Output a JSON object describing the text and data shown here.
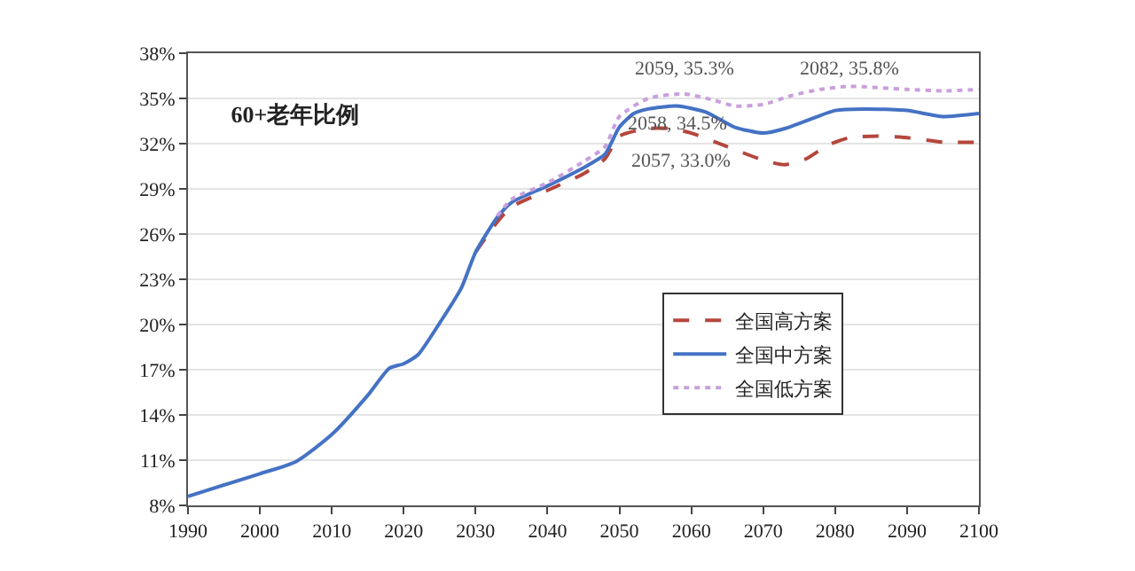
{
  "chart_data": {
    "type": "line",
    "title": "60+老年比例",
    "xlim": [
      1990,
      2100
    ],
    "xticks": [
      1990,
      2000,
      2010,
      2020,
      2030,
      2040,
      2050,
      2060,
      2070,
      2080,
      2090,
      2100
    ],
    "ylim": [
      8,
      38
    ],
    "yticks": [
      {
        "value": 8,
        "label": "8%"
      },
      {
        "value": 11,
        "label": "11%"
      },
      {
        "value": 14,
        "label": "14%"
      },
      {
        "value": 17,
        "label": "17%"
      },
      {
        "value": 20,
        "label": "20%"
      },
      {
        "value": 23,
        "label": "23%"
      },
      {
        "value": 26,
        "label": "26%"
      },
      {
        "value": 29,
        "label": "29%"
      },
      {
        "value": 32,
        "label": "32%"
      },
      {
        "value": 35,
        "label": "35%"
      },
      {
        "value": 38,
        "label": "38%"
      }
    ],
    "grid": "y",
    "legend": "right",
    "marker": "none",
    "series": [
      {
        "name": "全国高方案",
        "color": "#b5463c",
        "line_style": "dashed",
        "x": [
          2030,
          2033,
          2035,
          2040,
          2045,
          2048,
          2050,
          2054,
          2057,
          2060,
          2065,
          2070,
          2073,
          2076,
          2079,
          2082,
          2086,
          2090,
          2095,
          2100
        ],
        "values": [
          24.8,
          26.8,
          27.8,
          28.9,
          30.0,
          31.0,
          32.5,
          33.0,
          33.0,
          32.7,
          31.8,
          30.9,
          30.6,
          31.0,
          31.9,
          32.4,
          32.5,
          32.4,
          32.1,
          32.1
        ]
      },
      {
        "name": "全国中方案",
        "color": "#4472c4",
        "line_style": "solid",
        "x": [
          1990,
          2000,
          2005,
          2010,
          2015,
          2018,
          2020,
          2022,
          2025,
          2028,
          2030,
          2033,
          2035,
          2040,
          2045,
          2048,
          2050,
          2052,
          2054,
          2058,
          2062,
          2066,
          2070,
          2073,
          2077,
          2080,
          2084,
          2090,
          2095,
          2100
        ],
        "values": [
          8.6,
          10.1,
          10.9,
          12.7,
          15.3,
          17.1,
          17.4,
          18.0,
          20.1,
          22.4,
          24.8,
          27.1,
          28.1,
          29.2,
          30.4,
          31.3,
          33.1,
          34.0,
          34.3,
          34.5,
          34.1,
          33.1,
          32.7,
          33.0,
          33.7,
          34.2,
          34.3,
          34.2,
          33.8,
          34.0
        ]
      },
      {
        "name": "全国低方案",
        "color": "#c9a0dc",
        "line_style": "dotted",
        "x": [
          2033,
          2035,
          2040,
          2045,
          2048,
          2050,
          2054,
          2059,
          2063,
          2066,
          2070,
          2074,
          2078,
          2082,
          2090,
          2095,
          2100
        ],
        "values": [
          27.2,
          28.3,
          29.4,
          30.8,
          31.8,
          33.8,
          35.0,
          35.3,
          34.9,
          34.5,
          34.6,
          35.2,
          35.6,
          35.8,
          35.6,
          35.5,
          35.6
        ]
      }
    ],
    "annotations": [
      {
        "text": "2059, 35.3%",
        "x": 2059,
        "y": 35.3
      },
      {
        "text": "2058, 34.5%",
        "x": 2058,
        "y": 34.5
      },
      {
        "text": "2057, 33.0%",
        "x": 2057,
        "y": 33.0
      },
      {
        "text": "2082, 35.8%",
        "x": 2082,
        "y": 35.8
      }
    ]
  }
}
